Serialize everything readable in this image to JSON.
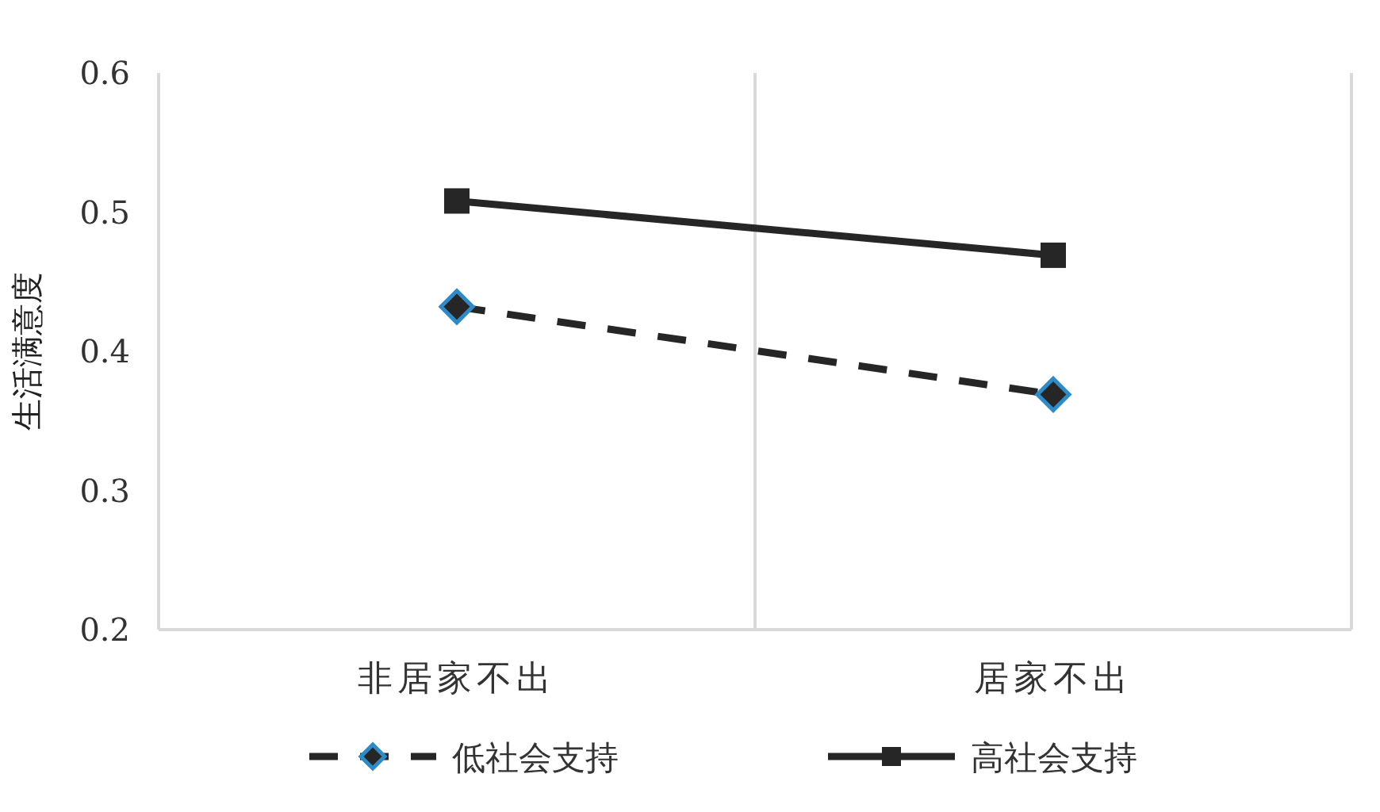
{
  "chart_data": {
    "type": "line",
    "ylabel": "生活满意度",
    "categories": [
      "非居家不出",
      "居家不出"
    ],
    "series": [
      {
        "name": "低社会支持",
        "color": "#262626",
        "values": [
          0.432,
          0.369
        ],
        "marker": "diamond",
        "line_style": "dashed"
      },
      {
        "name": "高社会支持",
        "color": "#262626",
        "values": [
          0.508,
          0.469
        ],
        "marker": "square",
        "line_style": "solid"
      }
    ],
    "ylim": [
      0.2,
      0.6
    ],
    "yticks": [
      0.2,
      0.3,
      0.4,
      0.5,
      0.6
    ],
    "grid": "x",
    "legend": "bottom"
  }
}
